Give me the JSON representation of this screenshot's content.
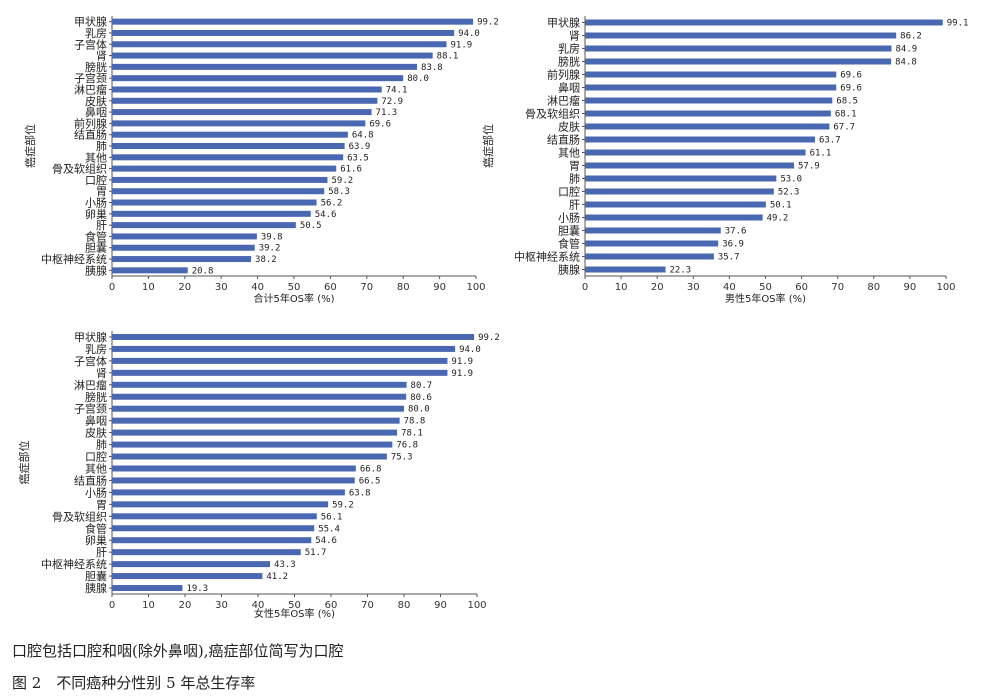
{
  "chart_data": [
    {
      "type": "bar",
      "orientation": "horizontal",
      "ylabel": "癌症部位",
      "xlabel": "合计5年OS率 (%)",
      "xlim": [
        0,
        100
      ],
      "xticks": [
        0,
        10,
        20,
        30,
        40,
        50,
        60,
        70,
        80,
        90,
        100
      ],
      "bar_color": "#4a67b1",
      "categories": [
        "甲状腺",
        "乳房",
        "子宫体",
        "肾",
        "膀胱",
        "子宫颈",
        "淋巴瘤",
        "皮肤",
        "鼻咽",
        "前列腺",
        "结直肠",
        "肺",
        "其他",
        "骨及软组织",
        "口腔",
        "胃",
        "小肠",
        "卵巢",
        "肝",
        "食管",
        "胆囊",
        "中枢神经系统",
        "胰腺"
      ],
      "values": [
        99.2,
        94.0,
        91.9,
        88.1,
        83.8,
        80.0,
        74.1,
        72.9,
        71.3,
        69.6,
        64.8,
        63.9,
        63.5,
        61.6,
        59.2,
        58.3,
        56.2,
        54.6,
        50.5,
        39.8,
        39.2,
        38.2,
        20.8
      ],
      "value_labels": [
        "99.2",
        "94.0",
        "91.9",
        "88.1",
        "83.8",
        "80.0",
        "74.1",
        "72.9",
        "71.3",
        "69.6",
        "64.8",
        "63.9",
        "63.5",
        "61.6",
        "59.2",
        "58.3",
        "56.2",
        "54.6",
        "50.5",
        "39.8",
        "39.2",
        "38.2",
        "20.8"
      ]
    },
    {
      "type": "bar",
      "orientation": "horizontal",
      "ylabel": "癌症部位",
      "xlabel": "男性5年OS率 (%)",
      "xlim": [
        0,
        100
      ],
      "xticks": [
        0,
        10,
        20,
        30,
        40,
        50,
        60,
        70,
        80,
        90,
        100
      ],
      "bar_color": "#4a67b1",
      "categories": [
        "甲状腺",
        "肾",
        "乳房",
        "膀胱",
        "前列腺",
        "鼻咽",
        "淋巴瘤",
        "骨及软组织",
        "皮肤",
        "结直肠",
        "其他",
        "胃",
        "肺",
        "口腔",
        "肝",
        "小肠",
        "胆囊",
        "食管",
        "中枢神经系统",
        "胰腺"
      ],
      "values": [
        99.1,
        86.2,
        84.9,
        84.8,
        69.6,
        69.6,
        68.5,
        68.1,
        67.7,
        63.7,
        61.1,
        57.9,
        53.0,
        52.3,
        50.1,
        49.2,
        37.6,
        36.9,
        35.7,
        22.3
      ],
      "value_labels": [
        "99.1",
        "86.2",
        "84.9",
        "84.8",
        "69.6",
        "69.6",
        "68.5",
        "68.1",
        "67.7",
        "63.7",
        "61.1",
        "57.9",
        "53.0",
        "52.3",
        "50.1",
        "49.2",
        "37.6",
        "36.9",
        "35.7",
        "22.3"
      ]
    },
    {
      "type": "bar",
      "orientation": "horizontal",
      "ylabel": "癌症部位",
      "xlabel": "女性5年OS率 (%)",
      "xlim": [
        0,
        100
      ],
      "xticks": [
        0,
        10,
        20,
        30,
        40,
        50,
        60,
        70,
        80,
        90,
        100
      ],
      "bar_color": "#4a67b1",
      "categories": [
        "甲状腺",
        "乳房",
        "子宫体",
        "肾",
        "淋巴瘤",
        "膀胱",
        "子宫颈",
        "鼻咽",
        "皮肤",
        "肺",
        "口腔",
        "其他",
        "结直肠",
        "小肠",
        "胃",
        "骨及软组织",
        "食管",
        "卵巢",
        "肝",
        "中枢神经系统",
        "胆囊",
        "胰腺"
      ],
      "values": [
        99.2,
        94.0,
        91.9,
        91.9,
        80.7,
        80.6,
        80.0,
        78.8,
        78.1,
        76.8,
        75.3,
        66.8,
        66.5,
        63.8,
        59.2,
        56.1,
        55.4,
        54.6,
        51.7,
        43.3,
        41.2,
        19.3
      ],
      "value_labels": [
        "99.2",
        "94.0",
        "91.9",
        "91.9",
        "80.7",
        "80.6",
        "80.0",
        "78.8",
        "78.1",
        "76.8",
        "75.3",
        "66.8",
        "66.5",
        "63.8",
        "59.2",
        "56.1",
        "55.4",
        "54.6",
        "51.7",
        "43.3",
        "41.2",
        "19.3"
      ]
    }
  ],
  "note": "口腔包括口腔和咽(除外鼻咽),癌症部位简写为口腔",
  "caption": "图 2　不同癌种分性别 5 年总生存率"
}
